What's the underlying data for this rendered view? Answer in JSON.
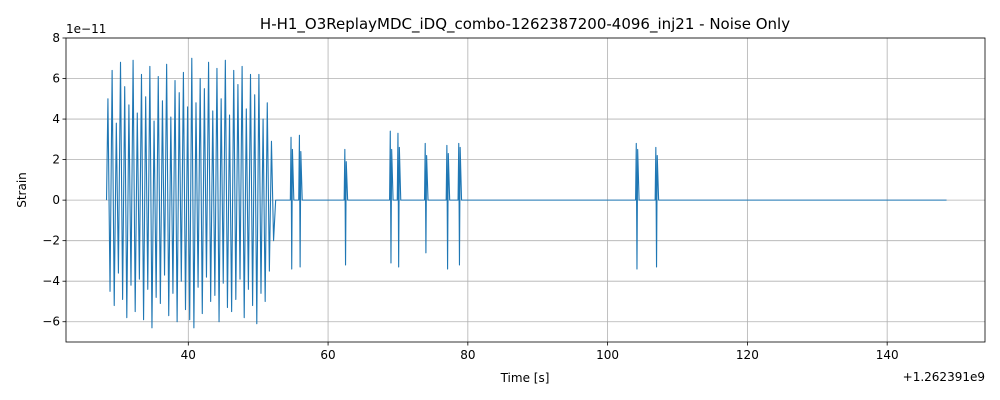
{
  "chart_data": {
    "type": "line",
    "title": "H-H1_O3ReplayMDC_iDQ_combo-1262387200-4096_inj21 - Noise Only",
    "xlabel": "Time [s]",
    "ylabel": "Strain",
    "x_offset_label": "+1.262391e9",
    "y_scale_label": "1e−11",
    "xlim": [
      22.5,
      154.0
    ],
    "ylim": [
      -7.0,
      8.0
    ],
    "grid": true,
    "series_color": "#1f77b4",
    "x_ticks": [
      {
        "value": 40,
        "label": "40"
      },
      {
        "value": 60,
        "label": "60"
      },
      {
        "value": 80,
        "label": "80"
      },
      {
        "value": 100,
        "label": "100"
      },
      {
        "value": 120,
        "label": "120"
      },
      {
        "value": 140,
        "label": "140"
      }
    ],
    "y_ticks": [
      {
        "value": 8,
        "label": "8"
      },
      {
        "value": 6,
        "label": "6"
      },
      {
        "value": 4,
        "label": "4"
      },
      {
        "value": 2,
        "label": "2"
      },
      {
        "value": 0,
        "label": "0"
      },
      {
        "value": -2,
        "label": "−2"
      },
      {
        "value": -4,
        "label": "−4"
      },
      {
        "value": -6,
        "label": "−6"
      }
    ],
    "series": [
      {
        "x": [
          28.3,
          28.5,
          28.8,
          29.1,
          29.4,
          29.7,
          30.0,
          30.3,
          30.6,
          30.9,
          31.2,
          31.5,
          31.8,
          32.1,
          32.4,
          32.7,
          33.0,
          33.3,
          33.6,
          33.9,
          34.2,
          34.5,
          34.8,
          35.1,
          35.4,
          35.7,
          36.0,
          36.3,
          36.6,
          36.9,
          37.2,
          37.5,
          37.8,
          38.1,
          38.4,
          38.7,
          39.0,
          39.3,
          39.6,
          39.9,
          40.2,
          40.5,
          40.8,
          41.1,
          41.4,
          41.7,
          42.0,
          42.3,
          42.6,
          42.9,
          43.2,
          43.5,
          43.8,
          44.1,
          44.4,
          44.7,
          45.0,
          45.3,
          45.6,
          45.9,
          46.2,
          46.5,
          46.8,
          47.1,
          47.4,
          47.7,
          48.0,
          48.3,
          48.6,
          48.9,
          49.2,
          49.5,
          49.8,
          50.1,
          50.4,
          50.7,
          51.0,
          51.3,
          51.6,
          51.9,
          52.2,
          52.5,
          53.5,
          54.6,
          54.7,
          54.8,
          54.9,
          55.1,
          55.8,
          55.9,
          56.0,
          56.1,
          56.3,
          58.0,
          60.0,
          62.3,
          62.4,
          62.5,
          62.6,
          62.8,
          65.0,
          68.8,
          68.9,
          69.0,
          69.1,
          69.3,
          69.9,
          70.0,
          70.1,
          70.2,
          70.4,
          72.0,
          73.8,
          73.9,
          74.0,
          74.1,
          74.3,
          76.0,
          76.9,
          77.0,
          77.1,
          77.2,
          77.4,
          78.6,
          78.7,
          78.8,
          78.9,
          79.1,
          85.0,
          95.0,
          104.0,
          104.1,
          104.2,
          104.3,
          104.5,
          106.8,
          106.9,
          107.0,
          107.1,
          107.3,
          115.0,
          130.0,
          148.5
        ],
        "y": [
          0.0,
          5.0,
          -4.5,
          6.4,
          -5.2,
          3.8,
          -3.6,
          6.8,
          -4.9,
          5.6,
          -5.8,
          4.7,
          -4.2,
          6.9,
          -5.5,
          4.3,
          -3.9,
          6.2,
          -5.9,
          5.1,
          -4.4,
          6.6,
          -6.3,
          3.9,
          -4.8,
          6.1,
          -5.1,
          4.9,
          -3.7,
          6.7,
          -5.7,
          4.1,
          -4.6,
          5.9,
          -6.0,
          5.3,
          -4.0,
          6.3,
          -5.4,
          4.6,
          -5.9,
          7.0,
          -6.3,
          4.8,
          -4.3,
          6.0,
          -5.6,
          5.5,
          -3.8,
          6.8,
          -5.0,
          4.4,
          -4.7,
          6.5,
          -6.0,
          5.0,
          -4.1,
          6.9,
          -5.3,
          4.2,
          -5.5,
          6.4,
          -4.9,
          5.7,
          -3.9,
          6.6,
          -5.8,
          4.5,
          -4.4,
          6.2,
          -5.2,
          5.2,
          -6.1,
          6.2,
          -4.6,
          4.0,
          -5.0,
          4.8,
          -3.5,
          2.9,
          -2.0,
          0.0,
          0.0,
          0.0,
          3.1,
          -3.4,
          2.5,
          0.0,
          0.0,
          3.2,
          -3.3,
          2.4,
          0.0,
          0.0,
          0.0,
          0.0,
          2.5,
          -3.2,
          1.9,
          0.0,
          0.0,
          0.0,
          3.4,
          -3.1,
          2.5,
          0.0,
          0.0,
          3.3,
          -3.3,
          2.6,
          0.0,
          0.0,
          0.0,
          2.8,
          -2.6,
          2.2,
          0.0,
          0.0,
          0.0,
          2.7,
          -3.4,
          2.3,
          0.0,
          0.0,
          2.8,
          -3.2,
          2.6,
          0.0,
          0.0,
          0.0,
          0.0,
          2.8,
          -3.4,
          2.5,
          0.0,
          0.0,
          2.6,
          -3.3,
          2.2,
          0.0,
          0.0,
          0.0,
          0.0
        ]
      }
    ]
  }
}
